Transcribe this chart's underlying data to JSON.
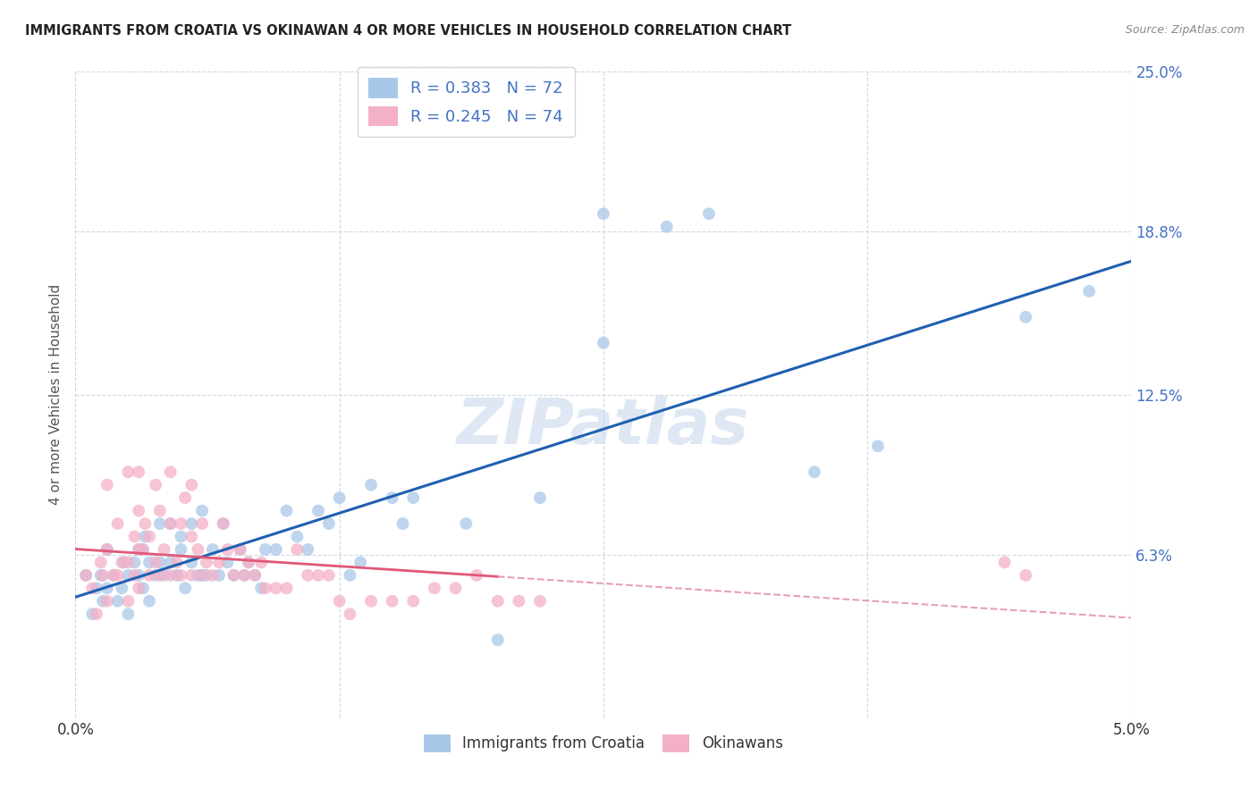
{
  "title": "IMMIGRANTS FROM CROATIA VS OKINAWAN 4 OR MORE VEHICLES IN HOUSEHOLD CORRELATION CHART",
  "source": "Source: ZipAtlas.com",
  "ylabel": "4 or more Vehicles in Household",
  "xlim": [
    0.0,
    5.0
  ],
  "ylim": [
    0.0,
    25.0
  ],
  "yticks_right": [
    6.3,
    12.5,
    18.8,
    25.0
  ],
  "ytick_labels_right": [
    "6.3%",
    "12.5%",
    "18.8%",
    "25.0%"
  ],
  "xticks": [
    0.0,
    1.25,
    2.5,
    3.75,
    5.0
  ],
  "xtick_labels": [
    "0.0%",
    "",
    "",
    "",
    "5.0%"
  ],
  "series1_color": "#a8c8e8",
  "series2_color": "#f4b0c8",
  "trendline1_color": "#2060b0",
  "trendline2_color": "#e05878",
  "trendline2_dash_color": "#e8a0b0",
  "background_color": "#ffffff",
  "watermark": "ZIPatlas",
  "watermark_color": "#c8d8ec",
  "grid_color": "#d0d8e0",
  "R1": "0.383",
  "N1": "72",
  "R2": "0.245",
  "N2": "74",
  "legend_label1": "Immigrants from Croatia",
  "legend_label2": "Okinawans",
  "series1_x": [
    0.05,
    0.08,
    0.1,
    0.12,
    0.13,
    0.15,
    0.15,
    0.18,
    0.2,
    0.22,
    0.23,
    0.25,
    0.25,
    0.28,
    0.3,
    0.3,
    0.32,
    0.32,
    0.33,
    0.35,
    0.35,
    0.38,
    0.4,
    0.4,
    0.42,
    0.45,
    0.45,
    0.48,
    0.5,
    0.5,
    0.52,
    0.55,
    0.55,
    0.58,
    0.6,
    0.6,
    0.62,
    0.65,
    0.68,
    0.7,
    0.72,
    0.75,
    0.78,
    0.8,
    0.82,
    0.85,
    0.88,
    0.9,
    0.95,
    1.0,
    1.05,
    1.1,
    1.15,
    1.2,
    1.25,
    1.3,
    1.35,
    1.4,
    1.5,
    1.55,
    1.6,
    1.85,
    2.0,
    2.2,
    2.5,
    2.5,
    2.8,
    3.0,
    3.5,
    3.8,
    4.5,
    4.8
  ],
  "series1_y": [
    5.5,
    4.0,
    5.0,
    5.5,
    4.5,
    5.0,
    6.5,
    5.5,
    4.5,
    5.0,
    6.0,
    4.0,
    5.5,
    6.0,
    5.5,
    6.5,
    5.0,
    6.5,
    7.0,
    4.5,
    6.0,
    5.5,
    6.0,
    7.5,
    5.5,
    6.0,
    7.5,
    5.5,
    6.5,
    7.0,
    5.0,
    6.0,
    7.5,
    5.5,
    5.5,
    8.0,
    5.5,
    6.5,
    5.5,
    7.5,
    6.0,
    5.5,
    6.5,
    5.5,
    6.0,
    5.5,
    5.0,
    6.5,
    6.5,
    8.0,
    7.0,
    6.5,
    8.0,
    7.5,
    8.5,
    5.5,
    6.0,
    9.0,
    8.5,
    7.5,
    8.5,
    7.5,
    3.0,
    8.5,
    14.5,
    19.5,
    19.0,
    19.5,
    9.5,
    10.5,
    15.5,
    16.5
  ],
  "series2_x": [
    0.05,
    0.08,
    0.1,
    0.12,
    0.13,
    0.15,
    0.15,
    0.15,
    0.18,
    0.2,
    0.2,
    0.22,
    0.25,
    0.25,
    0.25,
    0.28,
    0.28,
    0.3,
    0.3,
    0.3,
    0.3,
    0.32,
    0.33,
    0.35,
    0.35,
    0.38,
    0.38,
    0.4,
    0.4,
    0.42,
    0.45,
    0.45,
    0.45,
    0.48,
    0.5,
    0.5,
    0.52,
    0.55,
    0.55,
    0.55,
    0.58,
    0.6,
    0.6,
    0.62,
    0.65,
    0.68,
    0.7,
    0.72,
    0.75,
    0.78,
    0.8,
    0.82,
    0.85,
    0.88,
    0.9,
    0.95,
    1.0,
    1.05,
    1.1,
    1.15,
    1.2,
    1.25,
    1.3,
    1.4,
    1.5,
    1.6,
    1.7,
    1.8,
    1.9,
    2.0,
    2.1,
    2.2,
    4.4,
    4.5
  ],
  "series2_y": [
    5.5,
    5.0,
    4.0,
    6.0,
    5.5,
    4.5,
    6.5,
    9.0,
    5.5,
    5.5,
    7.5,
    6.0,
    4.5,
    6.0,
    9.5,
    7.0,
    5.5,
    5.0,
    6.5,
    8.0,
    9.5,
    6.5,
    7.5,
    5.5,
    7.0,
    6.0,
    9.0,
    5.5,
    8.0,
    6.5,
    5.5,
    7.5,
    9.5,
    6.0,
    5.5,
    7.5,
    8.5,
    5.5,
    7.0,
    9.0,
    6.5,
    5.5,
    7.5,
    6.0,
    5.5,
    6.0,
    7.5,
    6.5,
    5.5,
    6.5,
    5.5,
    6.0,
    5.5,
    6.0,
    5.0,
    5.0,
    5.0,
    6.5,
    5.5,
    5.5,
    5.5,
    4.5,
    4.0,
    4.5,
    4.5,
    4.5,
    5.0,
    5.0,
    5.5,
    4.5,
    4.5,
    4.5,
    6.0,
    5.5
  ],
  "trendline2_solid_x_end": 2.0
}
